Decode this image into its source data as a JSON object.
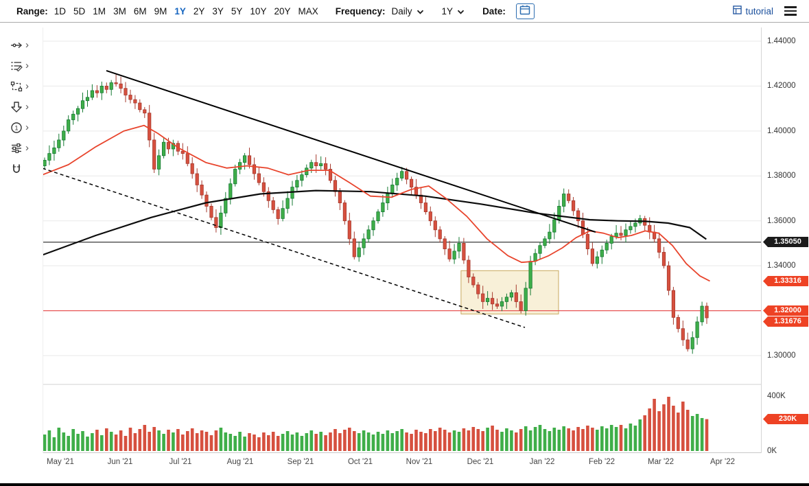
{
  "toolbar": {
    "range_label": "Range:",
    "ranges": [
      "1D",
      "5D",
      "1M",
      "3M",
      "6M",
      "9M",
      "1Y",
      "2Y",
      "3Y",
      "5Y",
      "10Y",
      "20Y",
      "MAX"
    ],
    "selected_range": "1Y",
    "frequency_label": "Frequency:",
    "frequency_value": "Daily",
    "period_value": "1Y",
    "date_label": "Date:",
    "tutorial_label": "tutorial"
  },
  "side_tools": [
    {
      "name": "trendline-tool",
      "chevron": true
    },
    {
      "name": "fibonacci-tool",
      "chevron": true
    },
    {
      "name": "shapes-tool",
      "chevron": true
    },
    {
      "name": "arrow-annotation-tool",
      "chevron": true
    },
    {
      "name": "number-annotation-tool",
      "chevron": true
    },
    {
      "name": "indicator-settings-tool",
      "chevron": true
    },
    {
      "name": "magnet-tool",
      "chevron": false
    }
  ],
  "colors": {
    "up": "#3fae49",
    "up_stroke": "#157a33",
    "down": "#d6503f",
    "down_stroke": "#a63a2e",
    "ma_fast": "#e8442c",
    "ma_slow": "#0c0c0c",
    "grid": "#e9e9e9",
    "badge_red": "#ee4224",
    "badge_black": "#1b1b1b",
    "accent_blue": "#1565c0",
    "hline_black": "#222222",
    "hline_red": "#e85555",
    "zone_fill": "#f3e3b8",
    "zone_stroke": "#c9a95f"
  },
  "chart_data": {
    "type": "candlestick",
    "frequency": "Daily",
    "first_open": 1.3845,
    "closes": [
      1.387,
      1.39,
      1.3925,
      1.396,
      1.4,
      1.405,
      1.4075,
      1.41,
      1.4135,
      1.415,
      1.418,
      1.417,
      1.42,
      1.4185,
      1.4215,
      1.421,
      1.419,
      1.416,
      1.414,
      1.4125,
      1.4095,
      1.408,
      1.396,
      1.383,
      1.389,
      1.395,
      1.392,
      1.3945,
      1.391,
      1.39,
      1.3855,
      1.381,
      1.376,
      1.3715,
      1.3665,
      1.3615,
      1.357,
      1.3635,
      1.37,
      1.3765,
      1.383,
      1.386,
      1.389,
      1.385,
      1.381,
      1.377,
      1.373,
      1.369,
      1.365,
      1.361,
      1.3655,
      1.37,
      1.375,
      1.378,
      1.3805,
      1.3835,
      1.386,
      1.3845,
      1.3855,
      1.383,
      1.378,
      1.373,
      1.368,
      1.36,
      1.352,
      1.344,
      1.348,
      1.352,
      1.356,
      1.36,
      1.364,
      1.368,
      1.372,
      1.376,
      1.379,
      1.382,
      1.3785,
      1.375,
      1.3715,
      1.368,
      1.364,
      1.36,
      1.356,
      1.352,
      1.3475,
      1.343,
      1.3465,
      1.35,
      1.3425,
      1.335,
      1.3315,
      1.3275,
      1.324,
      1.3255,
      1.323,
      1.322,
      1.324,
      1.326,
      1.328,
      1.324,
      1.32,
      1.33,
      1.342,
      1.3455,
      1.349,
      1.352,
      1.355,
      1.3605,
      1.3665,
      1.372,
      1.369,
      1.3645,
      1.36,
      1.354,
      1.3475,
      1.341,
      1.344,
      1.347,
      1.35,
      1.353,
      1.3545,
      1.3535,
      1.356,
      1.3575,
      1.359,
      1.361,
      1.358,
      1.355,
      1.352,
      1.346,
      1.34,
      1.329,
      1.317,
      1.312,
      1.307,
      1.303,
      1.308,
      1.315,
      1.322,
      1.3168
    ],
    "volumes_k": [
      120,
      150,
      100,
      170,
      135,
      110,
      160,
      125,
      145,
      105,
      130,
      155,
      115,
      165,
      140,
      120,
      150,
      110,
      170,
      130,
      160,
      190,
      140,
      175,
      150,
      125,
      155,
      135,
      160,
      120,
      145,
      165,
      130,
      150,
      140,
      115,
      150,
      170,
      135,
      125,
      110,
      140,
      105,
      130,
      120,
      100,
      135,
      115,
      140,
      110,
      125,
      145,
      120,
      135,
      110,
      130,
      150,
      125,
      140,
      115,
      135,
      160,
      130,
      155,
      170,
      145,
      130,
      150,
      135,
      120,
      140,
      125,
      150,
      130,
      145,
      160,
      135,
      125,
      155,
      140,
      130,
      160,
      145,
      170,
      155,
      135,
      150,
      140,
      165,
      150,
      175,
      160,
      145,
      170,
      185,
      155,
      140,
      165,
      150,
      135,
      160,
      180,
      150,
      175,
      190,
      160,
      145,
      170,
      155,
      180,
      165,
      150,
      175,
      160,
      185,
      170,
      155,
      180,
      165,
      190,
      175,
      190,
      165,
      200,
      185,
      230,
      260,
      310,
      380,
      290,
      340,
      395,
      330,
      280,
      360,
      300,
      255,
      270,
      240,
      232
    ],
    "ma_fast_points": [
      [
        0,
        1.3805
      ],
      [
        0.036,
        1.385
      ],
      [
        0.074,
        1.393
      ],
      [
        0.113,
        1.4
      ],
      [
        0.141,
        1.4025
      ],
      [
        0.16,
        1.399
      ],
      [
        0.189,
        1.3925
      ],
      [
        0.227,
        1.386
      ],
      [
        0.256,
        1.3835
      ],
      [
        0.284,
        1.3845
      ],
      [
        0.313,
        1.3835
      ],
      [
        0.342,
        1.3805
      ],
      [
        0.37,
        1.3825
      ],
      [
        0.399,
        1.3825
      ],
      [
        0.427,
        1.377
      ],
      [
        0.456,
        1.371
      ],
      [
        0.485,
        1.3705
      ],
      [
        0.513,
        1.374
      ],
      [
        0.537,
        1.3755
      ],
      [
        0.561,
        1.37
      ],
      [
        0.59,
        1.362
      ],
      [
        0.618,
        1.352
      ],
      [
        0.647,
        1.3445
      ],
      [
        0.666,
        1.3415
      ],
      [
        0.685,
        1.342
      ],
      [
        0.704,
        1.3445
      ],
      [
        0.723,
        1.348
      ],
      [
        0.742,
        1.3525
      ],
      [
        0.761,
        1.3555
      ],
      [
        0.78,
        1.3545
      ],
      [
        0.8,
        1.3525
      ],
      [
        0.819,
        1.3535
      ],
      [
        0.838,
        1.3555
      ],
      [
        0.857,
        1.3545
      ],
      [
        0.876,
        1.349
      ],
      [
        0.895,
        1.341
      ],
      [
        0.914,
        1.3355
      ],
      [
        0.928,
        1.3332
      ]
    ],
    "ma_slow_points": [
      [
        0,
        1.3448
      ],
      [
        0.074,
        1.3535
      ],
      [
        0.151,
        1.3615
      ],
      [
        0.227,
        1.368
      ],
      [
        0.303,
        1.372
      ],
      [
        0.38,
        1.3735
      ],
      [
        0.456,
        1.373
      ],
      [
        0.532,
        1.371
      ],
      [
        0.609,
        1.3675
      ],
      [
        0.685,
        1.3635
      ],
      [
        0.761,
        1.3605
      ],
      [
        0.8,
        1.36
      ],
      [
        0.838,
        1.3598
      ],
      [
        0.87,
        1.359
      ],
      [
        0.9,
        1.357
      ],
      [
        0.923,
        1.3518
      ]
    ],
    "trendline_solid": {
      "x1": 0.0887,
      "p1": 1.4269,
      "x2": 0.769,
      "p2": 1.355
    },
    "trendline_dashed": {
      "x1": 0.0,
      "p1": 1.3834,
      "x2": 0.6708,
      "p2": 1.3125
    },
    "zone": {
      "x1": 0.582,
      "x2": 0.7176,
      "top": 1.3378,
      "bottom": 1.3185
    },
    "hlines": [
      {
        "price": 1.3505,
        "color_key": "hline_black"
      },
      {
        "price": 1.32,
        "color_key": "hline_red"
      }
    ],
    "y_ticks": [
      {
        "label": "1.44000",
        "price": 1.44
      },
      {
        "label": "1.42000",
        "price": 1.42
      },
      {
        "label": "1.40000",
        "price": 1.4
      },
      {
        "label": "1.38000",
        "price": 1.38
      },
      {
        "label": "1.36000",
        "price": 1.36
      },
      {
        "label": "1.34000",
        "price": 1.34
      },
      {
        "label": "1.32000",
        "price": 1.32
      },
      {
        "label": "1.30000",
        "price": 1.3
      }
    ],
    "price_badges": [
      {
        "label": "1.35050",
        "price": 1.3505,
        "bg": "#1b1b1b"
      },
      {
        "label": "1.33316",
        "price": 1.33316,
        "bg": "#ee4224"
      },
      {
        "label": "1.32000",
        "price": 1.32,
        "bg": "#ee4224"
      },
      {
        "label": "1.31676",
        "price": 1.31676,
        "bg": "#ee4224"
      }
    ],
    "volume_ticks": [
      {
        "label": "400K",
        "v": 400
      },
      {
        "label": "0K",
        "v": 0
      }
    ],
    "volume_badge": {
      "label": "230K",
      "v": 232,
      "bg": "#ee4224"
    },
    "x_labels": [
      {
        "label": "May '21",
        "f": 0.025
      },
      {
        "label": "Jun '21",
        "f": 0.108
      },
      {
        "label": "Jul '21",
        "f": 0.192
      },
      {
        "label": "Aug '21",
        "f": 0.275
      },
      {
        "label": "Sep '21",
        "f": 0.359
      },
      {
        "label": "Oct '21",
        "f": 0.442
      },
      {
        "label": "Nov '21",
        "f": 0.524
      },
      {
        "label": "Dec '21",
        "f": 0.609
      },
      {
        "label": "Jan '22",
        "f": 0.695
      },
      {
        "label": "Feb '22",
        "f": 0.778
      },
      {
        "label": "Mar '22",
        "f": 0.86
      },
      {
        "label": "Apr '22",
        "f": 0.946
      }
    ],
    "ylim": [
      1.3,
      1.44
    ],
    "volume_ylim_k": [
      0,
      400
    ],
    "grid": "horizontal"
  }
}
